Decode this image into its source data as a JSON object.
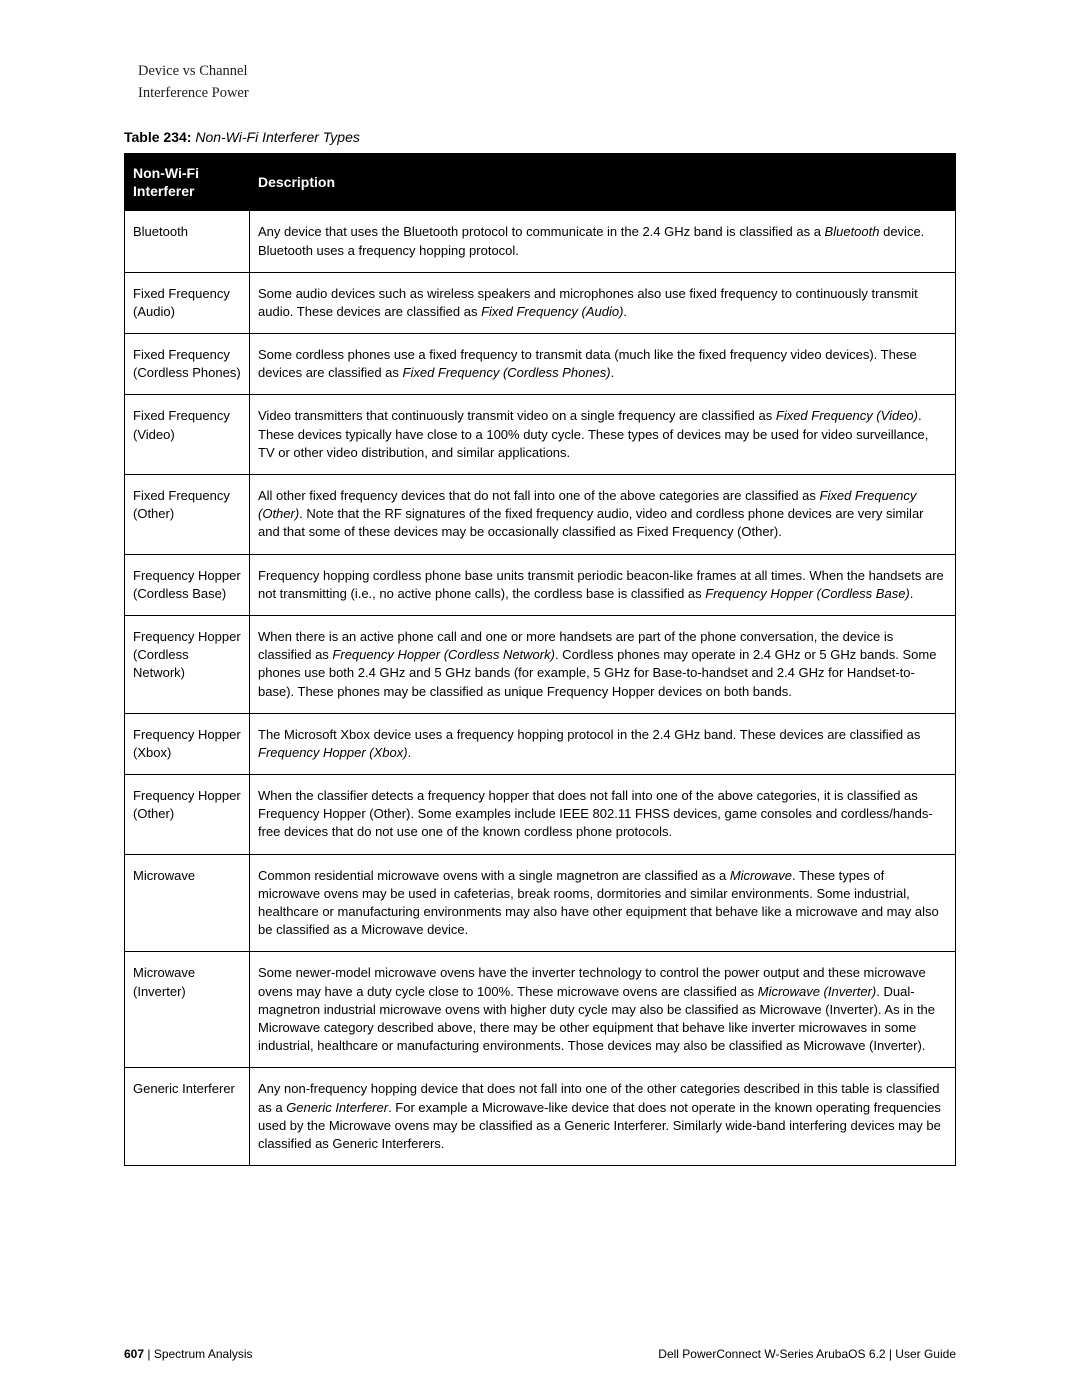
{
  "intro": {
    "line1": "Device vs Channel",
    "line2": "Interference Power"
  },
  "table_caption": {
    "label": "Table 234:",
    "title": " Non-Wi-Fi Interferer Types"
  },
  "columns": {
    "name": "Non-Wi-Fi Interferer",
    "desc": "Description"
  },
  "rows": [
    {
      "name": "Bluetooth",
      "desc": "Any device that uses the Bluetooth protocol to communicate in the 2.4 GHz band is classified as a <em>Bluetooth</em> device. Bluetooth uses a frequency hopping protocol."
    },
    {
      "name": "Fixed Frequency (Audio)",
      "desc": "Some audio devices such as wireless speakers and microphones also use fixed frequency to continuously transmit audio. These devices are classified as <em>Fixed Frequency (Audio)</em>."
    },
    {
      "name": "Fixed Frequency (Cordless Phones)",
      "desc": "Some cordless phones use a fixed frequency to transmit data (much like the fixed frequency video devices). These devices are classified as <em>Fixed Frequency (Cordless Phones)</em>."
    },
    {
      "name": "Fixed Frequency (Video)",
      "desc": "Video transmitters that continuously transmit video on a single frequency are classified as <em>Fixed Frequency (Video)</em>. These devices typically have close to a 100% duty cycle. These types of devices may be used for video surveillance, TV or other video distribution, and similar applications."
    },
    {
      "name": "Fixed Frequency (Other)",
      "desc": "All other fixed frequency devices that do not fall into one of the above categories are classified as <em>Fixed Frequency (Other)</em>. Note that the RF signatures of the fixed frequency audio, video and cordless phone devices are very similar and that some of these devices may be occasionally classified as Fixed Frequency (Other)."
    },
    {
      "name": "Frequency Hopper (Cordless Base)",
      "desc": "Frequency hopping cordless phone base units transmit periodic beacon-like frames at all times. When the handsets are not transmitting (i.e., no active phone calls), the cordless base is classified as <em>Frequency Hopper (Cordless Base)</em>."
    },
    {
      "name": "Frequency Hopper (Cordless Network)",
      "desc": "When there is an active phone call and one or more handsets are part of the phone conversation, the device is classified as <em>Frequency Hopper (Cordless Network)</em>. Cordless phones may operate in 2.4 GHz or 5 GHz bands. Some phones use both 2.4 GHz and 5 GHz bands (for example, 5 GHz for Base-to-handset and 2.4 GHz for Handset-to-base). These phones may be classified as unique Frequency Hopper devices on both bands."
    },
    {
      "name": "Frequency Hopper (Xbox)",
      "desc": "The Microsoft Xbox device uses a frequency hopping protocol in the 2.4 GHz band. These devices are classified as <em>Frequency Hopper (Xbox)</em>."
    },
    {
      "name": "Frequency Hopper (Other)",
      "desc": "When the classifier detects a frequency hopper that does not fall into one of the above categories, it is classified as Frequency Hopper (Other). Some examples include IEEE 802.11 FHSS devices, game consoles and cordless/hands-free devices that do not use one of the known cordless phone protocols."
    },
    {
      "name": "Microwave",
      "desc": "Common residential microwave ovens with a single magnetron are classified as a <em>Microwave</em>. These types of microwave ovens may be used in cafeterias, break rooms, dormitories and similar environments. Some industrial, healthcare or manufacturing environments may also have other equipment that behave like a microwave and may also be classified as a Microwave device."
    },
    {
      "name": "Microwave (Inverter)",
      "desc": "Some newer-model microwave ovens have the inverter technology to control the power output and these microwave ovens may have a duty cycle close to 100%. These microwave ovens are classified as <em>Microwave (Inverter)</em>. Dual-magnetron industrial microwave ovens with higher duty cycle may also be classified as Microwave (Inverter). As in the Microwave category described above, there may be other equipment that behave like inverter microwaves in some industrial, healthcare or manufacturing environments. Those devices may also be classified as Microwave (Inverter)."
    },
    {
      "name": "Generic Interferer",
      "desc": "Any non-frequency hopping device that does not fall into one of the other categories described in this table is classified as a <em>Generic Interferer</em>. For example a Microwave-like device that does not operate in the known operating frequencies used by the Microwave ovens may be classified as a Generic Interferer. Similarly wide-band interfering devices may be classified as Generic Interferers."
    }
  ],
  "footer": {
    "page_number": "607",
    "sep": " | ",
    "section": "Spectrum Analysis",
    "right": "Dell PowerConnect W-Series ArubaOS 6.2  |  User Guide"
  }
}
